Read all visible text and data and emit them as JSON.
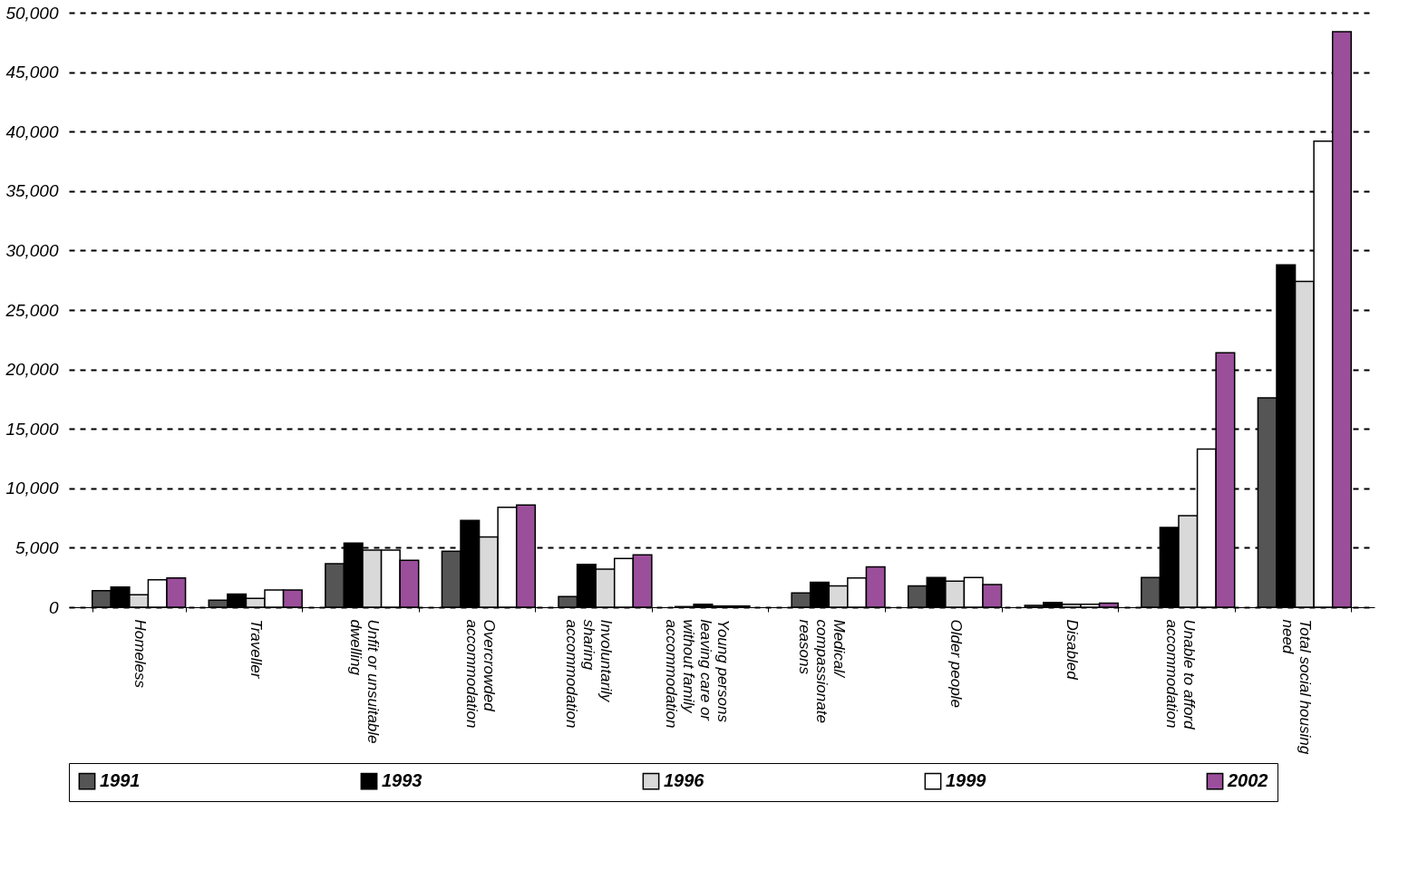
{
  "chart_data": {
    "type": "bar",
    "categories": [
      "Homeless",
      "Traveller",
      "Unfit or unsuitable dwelling",
      "Overcrowded accommodation",
      "Involuntarily sharing accommodation",
      "Young persons leaving care or without family accommodation",
      "Medical/ compassionate reasons",
      "Older people",
      "Disabled",
      "Unable to afford accommodation",
      "Total social housing need"
    ],
    "series": [
      {
        "name": "1991",
        "color": "#555555",
        "values": [
          1400,
          600,
          3650,
          4700,
          900,
          50,
          1200,
          1800,
          150,
          2500,
          17600
        ]
      },
      {
        "name": "1993",
        "color": "#000000",
        "values": [
          1700,
          1100,
          5400,
          7300,
          3600,
          250,
          2100,
          2500,
          400,
          6700,
          28800
        ]
      },
      {
        "name": "1996",
        "color": "#d9d9d9",
        "values": [
          1050,
          750,
          4800,
          5900,
          3200,
          100,
          1800,
          2200,
          250,
          7700,
          27400
        ]
      },
      {
        "name": "1999",
        "color": "#ffffff",
        "values": [
          2300,
          1450,
          4800,
          8400,
          4100,
          100,
          2450,
          2500,
          250,
          13300,
          39200
        ]
      },
      {
        "name": "2002",
        "color": "#9b4f9b",
        "values": [
          2450,
          1450,
          3950,
          8600,
          4400,
          null,
          3400,
          1900,
          350,
          21400,
          48400
        ]
      }
    ],
    "ylim": [
      0,
      50000
    ],
    "yticks": [
      0,
      {
        "value": 5000,
        "label": "5,000"
      },
      {
        "value": 10000,
        "label": "10,000"
      },
      {
        "value": 15000,
        "label": "15,000"
      },
      {
        "value": 20000,
        "label": "20,000"
      },
      {
        "value": 25000,
        "label": "25,000"
      },
      {
        "value": 30000,
        "label": "30,000"
      },
      {
        "value": 35000,
        "label": "35,000"
      },
      {
        "value": 40000,
        "label": "40,000"
      },
      {
        "value": 45000,
        "label": "45,000"
      },
      {
        "value": 50000,
        "label": "50,000"
      }
    ],
    "grid": "y",
    "legend": "bottom"
  }
}
